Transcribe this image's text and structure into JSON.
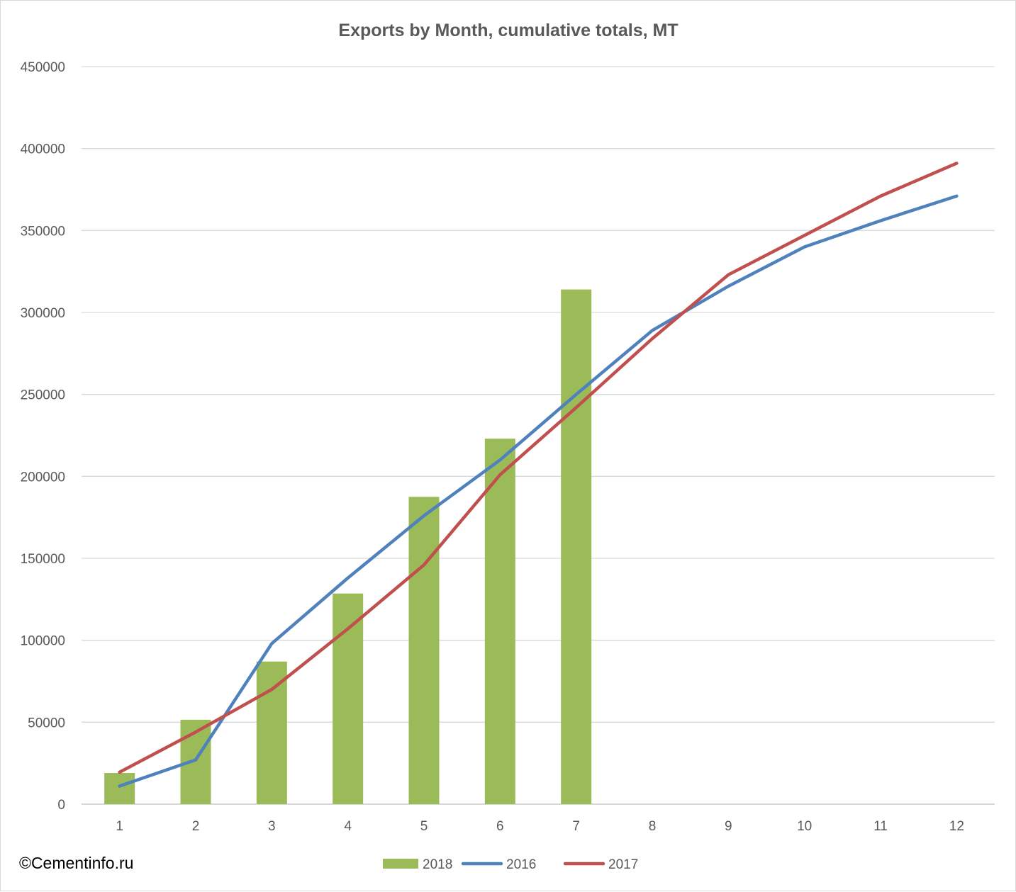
{
  "copyright": "©Cementinfo.ru",
  "chart_data": {
    "type": "bar",
    "title": "Exports by Month, cumulative totals, MT",
    "categories": [
      "1",
      "2",
      "3",
      "4",
      "5",
      "6",
      "7",
      "8",
      "9",
      "10",
      "11",
      "12"
    ],
    "ylim": [
      0,
      450000
    ],
    "yticks": [
      0,
      50000,
      100000,
      150000,
      200000,
      250000,
      300000,
      350000,
      400000,
      450000
    ],
    "ytick_labels": [
      "0",
      "50000",
      "100000",
      "150000",
      "200000",
      "250000",
      "300000",
      "350000",
      "400000",
      "450000"
    ],
    "grid": true,
    "legend_position": "bottom",
    "series": [
      {
        "name": "2018",
        "type": "bar",
        "color": "#9bbb59",
        "values": [
          19000,
          51500,
          87000,
          128500,
          187500,
          223000,
          314000,
          null,
          null,
          null,
          null,
          null
        ]
      },
      {
        "name": "2016",
        "type": "line",
        "color": "#4f81bd",
        "values": [
          11000,
          27000,
          98000,
          138000,
          176000,
          210000,
          250000,
          289000,
          316000,
          340000,
          356000,
          371000
        ]
      },
      {
        "name": "2017",
        "type": "line",
        "color": "#c0504d",
        "values": [
          19500,
          44000,
          70000,
          107000,
          146000,
          201000,
          242000,
          284000,
          323000,
          347000,
          371000,
          391000
        ]
      }
    ]
  }
}
